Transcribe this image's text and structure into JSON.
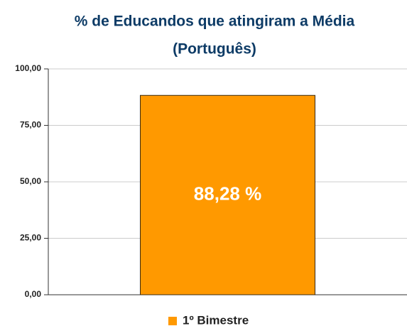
{
  "chart_data": {
    "type": "bar",
    "title": [
      "% de Educandos que atingiram a Média",
      "(Português)"
    ],
    "categories": [
      null
    ],
    "series": [
      {
        "name": "1º Bimestre",
        "color": "#ff9900",
        "values": [
          88.28
        ],
        "value_labels": [
          "88,28 %"
        ]
      }
    ],
    "ylim": [
      0,
      100
    ],
    "yticks": [
      {
        "value": 0,
        "label": "0,00"
      },
      {
        "value": 25,
        "label": "25,00"
      },
      {
        "value": 50,
        "label": "50,00"
      },
      {
        "value": 75,
        "label": "75,00"
      },
      {
        "value": 100,
        "label": "100,00"
      }
    ],
    "grid": true,
    "legend": "bottom"
  }
}
